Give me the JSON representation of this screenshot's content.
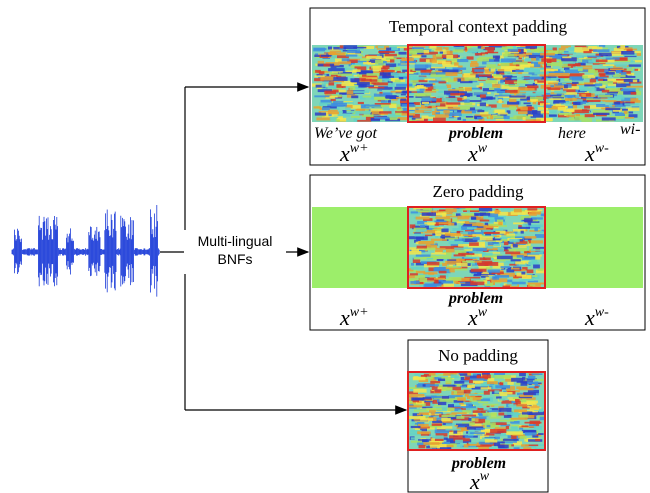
{
  "source": {
    "feature_label": [
      "Multi-lingual",
      "BNFs"
    ]
  },
  "panels": [
    {
      "title": "Temporal context padding",
      "words": [
        "We’ve got",
        "problem",
        "here",
        "wi-"
      ],
      "segments": [
        {
          "base": "x",
          "sup": "w+"
        },
        {
          "base": "x",
          "sup": "w"
        },
        {
          "base": "x",
          "sup": "w-"
        }
      ]
    },
    {
      "title": "Zero padding",
      "words": [
        "problem"
      ],
      "segments": [
        {
          "base": "x",
          "sup": "w+"
        },
        {
          "base": "x",
          "sup": "w"
        },
        {
          "base": "x",
          "sup": "w-"
        }
      ]
    },
    {
      "title": "No padding",
      "words": [
        "problem"
      ],
      "segments": [
        {
          "base": "x",
          "sup": "w"
        }
      ]
    }
  ]
}
